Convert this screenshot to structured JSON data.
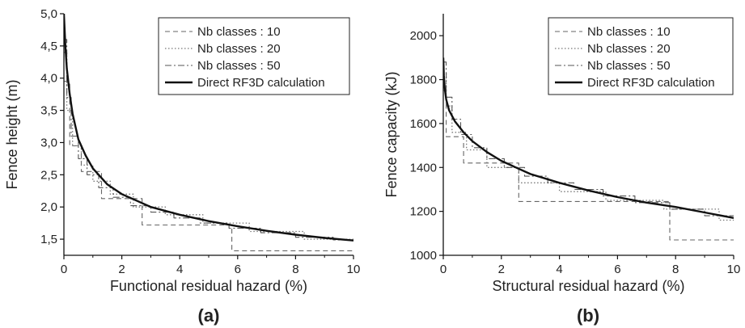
{
  "chart_data": [
    {
      "type": "line",
      "panel_label": "(a)",
      "xlabel": "Functional residual hazard (%)",
      "ylabel": "Fence height (m)",
      "xlim": [
        0,
        10
      ],
      "ylim": [
        1.25,
        5.0
      ],
      "xticks": [
        "0",
        "2",
        "4",
        "6",
        "8",
        "10"
      ],
      "xtick_values": [
        0,
        2,
        4,
        6,
        8,
        10
      ],
      "yticks": [
        "1,5",
        "2,0",
        "2,5",
        "3,0",
        "3,5",
        "4,0",
        "4,5",
        "5,0"
      ],
      "ytick_values": [
        1.5,
        2.0,
        2.5,
        3.0,
        3.5,
        4.0,
        4.5,
        5.0
      ],
      "legend_position": "top-right",
      "series": [
        {
          "name": "Nb classes : 10",
          "style": "dashed",
          "x": [
            0,
            0.2,
            0.2,
            0.6,
            0.6,
            1.3,
            1.3,
            2.7,
            2.7,
            5.8,
            5.8,
            10
          ],
          "y": [
            3.95,
            3.95,
            2.95,
            2.95,
            2.55,
            2.55,
            2.13,
            2.13,
            1.72,
            1.72,
            1.32,
            1.32
          ]
        },
        {
          "name": "Nb classes : 20",
          "style": "dotted",
          "x": [
            0,
            0.1,
            0.1,
            0.3,
            0.3,
            0.6,
            0.6,
            1.0,
            1.0,
            1.6,
            1.6,
            2.4,
            2.4,
            3.5,
            3.5,
            4.8,
            4.8,
            6.4,
            6.4,
            8.3,
            8.3,
            10
          ],
          "y": [
            4.4,
            4.4,
            3.5,
            3.5,
            2.95,
            2.95,
            2.65,
            2.65,
            2.4,
            2.4,
            2.2,
            2.2,
            2.0,
            2.0,
            1.88,
            1.88,
            1.75,
            1.75,
            1.62,
            1.62,
            1.5,
            1.5
          ]
        },
        {
          "name": "Nb classes : 50",
          "style": "dashdot",
          "x": [
            0,
            0.1,
            0.1,
            0.25,
            0.25,
            0.5,
            0.5,
            0.8,
            0.8,
            1.2,
            1.2,
            1.7,
            1.7,
            2.3,
            2.3,
            3.0,
            3.0,
            3.8,
            3.8,
            4.7,
            4.7,
            5.7,
            5.7,
            6.8,
            6.8,
            8.0,
            8.0,
            9.3,
            9.3,
            10
          ],
          "y": [
            4.6,
            4.6,
            3.7,
            3.7,
            3.1,
            3.1,
            2.75,
            2.75,
            2.5,
            2.5,
            2.3,
            2.3,
            2.15,
            2.15,
            2.02,
            2.02,
            1.92,
            1.92,
            1.83,
            1.83,
            1.75,
            1.75,
            1.67,
            1.67,
            1.6,
            1.6,
            1.53,
            1.53,
            1.49,
            1.49
          ]
        },
        {
          "name": "Direct RF3D calculation",
          "style": "solid",
          "x": [
            0,
            0.05,
            0.1,
            0.2,
            0.3,
            0.5,
            0.75,
            1.0,
            1.5,
            2.0,
            2.5,
            3.0,
            4.0,
            5.0,
            6.0,
            7.0,
            8.0,
            9.0,
            10.0
          ],
          "y": [
            5.0,
            4.5,
            4.15,
            3.75,
            3.45,
            3.05,
            2.8,
            2.6,
            2.35,
            2.2,
            2.1,
            2.0,
            1.88,
            1.78,
            1.7,
            1.63,
            1.57,
            1.52,
            1.48
          ]
        }
      ]
    },
    {
      "type": "line",
      "panel_label": "(b)",
      "xlabel": "Structural residual hazard (%)",
      "ylabel": "Fence capacity (kJ)",
      "xlim": [
        0,
        10
      ],
      "ylim": [
        1000,
        2100
      ],
      "xticks": [
        "0",
        "2",
        "4",
        "6",
        "8",
        "10"
      ],
      "xtick_values": [
        0,
        2,
        4,
        6,
        8,
        10
      ],
      "yticks": [
        "1000",
        "1200",
        "1400",
        "1600",
        "1800",
        "2000"
      ],
      "ytick_values": [
        1000,
        1200,
        1400,
        1600,
        1800,
        2000
      ],
      "legend_position": "top-right",
      "series": [
        {
          "name": "Nb classes : 10",
          "style": "dashed",
          "x": [
            0,
            0.1,
            0.1,
            0.7,
            0.7,
            2.6,
            2.6,
            7.8,
            7.8,
            10
          ],
          "y": [
            1750,
            1750,
            1540,
            1540,
            1420,
            1420,
            1245,
            1245,
            1070,
            1070
          ]
        },
        {
          "name": "Nb classes : 20",
          "style": "dotted",
          "x": [
            0,
            0.1,
            0.1,
            0.3,
            0.3,
            0.8,
            0.8,
            1.5,
            1.5,
            2.6,
            2.6,
            4.0,
            4.0,
            5.6,
            5.6,
            7.6,
            7.6,
            9.5,
            9.5,
            10
          ],
          "y": [
            1830,
            1830,
            1680,
            1680,
            1560,
            1560,
            1480,
            1480,
            1400,
            1400,
            1330,
            1330,
            1290,
            1290,
            1250,
            1250,
            1210,
            1210,
            1160,
            1160
          ]
        },
        {
          "name": "Nb classes : 50",
          "style": "dashdot",
          "x": [
            0,
            0.1,
            0.1,
            0.3,
            0.3,
            0.6,
            0.6,
            1.0,
            1.0,
            1.5,
            1.5,
            2.1,
            2.1,
            2.8,
            2.8,
            3.6,
            3.6,
            4.5,
            4.5,
            5.5,
            5.5,
            6.6,
            6.6,
            7.8,
            7.8,
            9.0,
            9.0,
            10
          ],
          "y": [
            1880,
            1880,
            1720,
            1720,
            1620,
            1620,
            1550,
            1550,
            1490,
            1490,
            1440,
            1440,
            1400,
            1400,
            1360,
            1360,
            1330,
            1330,
            1300,
            1300,
            1270,
            1270,
            1240,
            1240,
            1210,
            1210,
            1180,
            1180
          ]
        },
        {
          "name": "Direct RF3D calculation",
          "style": "solid",
          "x": [
            0,
            0.02,
            0.05,
            0.1,
            0.2,
            0.4,
            0.7,
            1.0,
            1.5,
            2.0,
            2.5,
            3.0,
            4.0,
            5.0,
            6.0,
            7.0,
            8.0,
            9.0,
            10.0
          ],
          "y": [
            1900,
            1820,
            1760,
            1710,
            1660,
            1610,
            1560,
            1520,
            1470,
            1430,
            1400,
            1370,
            1330,
            1295,
            1265,
            1240,
            1220,
            1195,
            1170
          ]
        }
      ]
    }
  ]
}
